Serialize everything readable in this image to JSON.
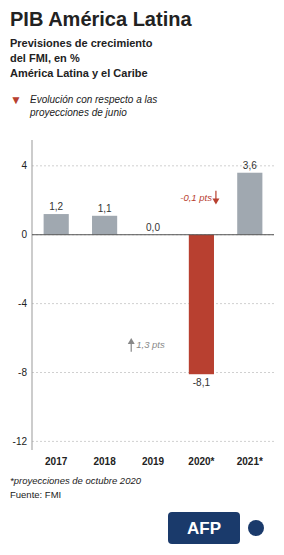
{
  "chart_data": {
    "type": "bar",
    "title": "PIB América Latina",
    "subtitle": [
      "Previsiones de crecimiento",
      "del FMI, en %",
      "América Latina y el Caribe"
    ],
    "legend_note": {
      "symbol": "▼",
      "color": "#b84030",
      "text": [
        "Evolución con respecto a las",
        "proyecciones de junio"
      ]
    },
    "categories": [
      "2017",
      "2018",
      "2019",
      "2020*",
      "2021*"
    ],
    "values": [
      1.2,
      1.1,
      0.0,
      -8.1,
      3.6
    ],
    "value_labels": [
      "1,2",
      "1,1",
      "0,0",
      "-8,1",
      "3,6"
    ],
    "colors": [
      "#a0a8b0",
      "#a0a8b0",
      "#a0a8b0",
      "#b84030",
      "#a0a8b0"
    ],
    "data_labels": true,
    "ylim": [
      -12.5,
      5.5
    ],
    "yticks": [
      4,
      0,
      -4,
      -8,
      -12
    ],
    "grid": true,
    "annotations": [
      {
        "text": "-0,1 pts",
        "color": "#b84030"
      },
      {
        "text": "1,3 pts",
        "color": "#888888"
      }
    ],
    "footnotes": [
      "*proyecciones de octubre 2020",
      "Fuente: FMI"
    ],
    "logo": "AFP"
  }
}
